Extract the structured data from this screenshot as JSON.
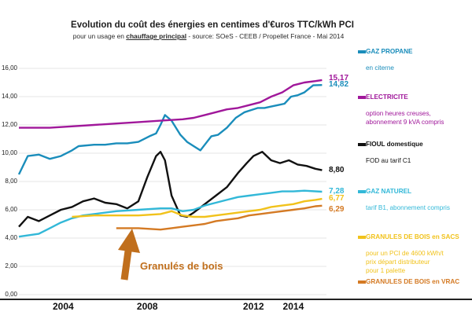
{
  "chart_data": {
    "type": "line",
    "title": "Evolution du coût des énergies en centimes d'€uros TTC/kWh PCI",
    "subtitle_prefix": "pour un usage en ",
    "subtitle_emphasis": "chauffage principal",
    "subtitle_suffix": " - source: SOeS - CEEB / Propellet France - Mai 2014",
    "ylim": [
      0,
      16
    ],
    "y_ticks": [
      "0,00",
      "2,00",
      "4,00",
      "6,00",
      "8,00",
      "10,00",
      "12,00",
      "14,00",
      "16,00"
    ],
    "x_labels": [
      "2004",
      "2008",
      "2012",
      "2014"
    ],
    "xlim": [
      2001.6,
      2015.5
    ],
    "grid": true,
    "annotation": "Granulés de bois",
    "series": [
      {
        "name": "GAZ PROPANE",
        "detail": [
          "en citerne"
        ],
        "color": "#1a8dbb",
        "end_value": "14,82",
        "x": [
          2001.6,
          2002.0,
          2002.5,
          2003.0,
          2003.5,
          2004.0,
          2004.3,
          2005.0,
          2005.5,
          2006.0,
          2006.5,
          2007.0,
          2007.5,
          2007.8,
          2008.0,
          2008.2,
          2008.5,
          2008.9,
          2009.2,
          2009.5,
          2009.8,
          2010.0,
          2010.3,
          2010.6,
          2011.0,
          2011.4,
          2011.8,
          2012.0,
          2012.4,
          2012.7,
          2013.0,
          2013.3,
          2013.6,
          2013.9,
          2014.2,
          2014.5,
          2014.9,
          2015.3
        ],
        "values": [
          8.5,
          9.8,
          9.9,
          9.6,
          9.8,
          10.2,
          10.5,
          10.6,
          10.6,
          10.7,
          10.7,
          10.8,
          11.2,
          11.4,
          12.0,
          12.7,
          12.3,
          11.3,
          10.8,
          10.5,
          10.2,
          10.6,
          11.2,
          11.3,
          11.8,
          12.5,
          12.9,
          13.0,
          13.2,
          13.2,
          13.3,
          13.4,
          13.5,
          14.0,
          14.1,
          14.3,
          14.8,
          14.82
        ]
      },
      {
        "name": "ELECTRICITE",
        "detail": [
          "option heures creuses,",
          "abonnement 9 kVA compris"
        ],
        "color": "#a0179a",
        "end_value": "15,17",
        "x": [
          2001.6,
          2003.0,
          2004.0,
          2005.0,
          2006.0,
          2007.0,
          2008.0,
          2009.0,
          2009.5,
          2010.0,
          2010.5,
          2011.0,
          2011.5,
          2012.0,
          2012.5,
          2013.0,
          2013.5,
          2014.0,
          2014.5,
          2015.0,
          2015.3
        ],
        "values": [
          11.8,
          11.8,
          11.9,
          12.0,
          12.1,
          12.2,
          12.3,
          12.4,
          12.5,
          12.7,
          12.9,
          13.1,
          13.2,
          13.4,
          13.6,
          14.0,
          14.3,
          14.8,
          15.0,
          15.1,
          15.17
        ]
      },
      {
        "name": "FIOUL domestique",
        "detail": [
          "FOD au tarif C1"
        ],
        "color": "#111111",
        "end_value": "8,80",
        "x": [
          2001.6,
          2002.0,
          2002.5,
          2003.0,
          2003.5,
          2004.0,
          2004.5,
          2005.0,
          2005.5,
          2006.0,
          2006.5,
          2007.0,
          2007.4,
          2007.8,
          2008.0,
          2008.2,
          2008.5,
          2008.9,
          2009.2,
          2009.5,
          2010.0,
          2010.5,
          2011.0,
          2011.5,
          2011.9,
          2012.2,
          2012.6,
          2013.0,
          2013.4,
          2013.8,
          2014.2,
          2014.6,
          2015.0,
          2015.3
        ],
        "values": [
          4.8,
          5.5,
          5.2,
          5.6,
          6.0,
          6.2,
          6.6,
          6.8,
          6.5,
          6.4,
          6.1,
          6.6,
          8.3,
          9.8,
          10.1,
          9.5,
          7.0,
          5.6,
          5.5,
          5.8,
          6.4,
          7.0,
          7.6,
          8.6,
          9.3,
          9.8,
          10.1,
          9.5,
          9.3,
          9.5,
          9.2,
          9.1,
          8.9,
          8.8
        ]
      },
      {
        "name": "GAZ NATUREL",
        "detail": [
          "tarif B1, abonnement compris"
        ],
        "color": "#32b8d8",
        "end_value": "7,28",
        "x": [
          2001.6,
          2002.5,
          2003.0,
          2003.5,
          2004.0,
          2004.5,
          2005.0,
          2006.0,
          2007.0,
          2008.0,
          2008.5,
          2009.0,
          2009.5,
          2010.0,
          2010.5,
          2011.0,
          2011.5,
          2012.0,
          2012.5,
          2013.0,
          2013.5,
          2014.0,
          2014.5,
          2015.3
        ],
        "values": [
          4.1,
          4.3,
          4.7,
          5.1,
          5.4,
          5.6,
          5.7,
          5.9,
          6.0,
          6.1,
          6.1,
          5.9,
          6.0,
          6.3,
          6.5,
          6.7,
          6.9,
          7.0,
          7.1,
          7.2,
          7.3,
          7.3,
          7.35,
          7.28
        ]
      },
      {
        "name": "GRANULES DE BOIS en SACS",
        "detail": [
          "pour un PCI de 4600 kWh/t",
          "prix départ distributeur",
          "pour 1 palette"
        ],
        "color": "#f1c21b",
        "end_value": "6,77",
        "x": [
          2004.0,
          2005.0,
          2006.0,
          2007.0,
          2008.0,
          2008.5,
          2009.0,
          2009.5,
          2010.0,
          2010.5,
          2011.0,
          2011.5,
          2012.0,
          2012.5,
          2013.0,
          2013.5,
          2014.0,
          2014.5,
          2015.0,
          2015.3
        ],
        "values": [
          5.5,
          5.6,
          5.6,
          5.6,
          5.7,
          5.9,
          5.6,
          5.5,
          5.5,
          5.6,
          5.7,
          5.8,
          5.9,
          6.0,
          6.2,
          6.3,
          6.4,
          6.6,
          6.7,
          6.77
        ]
      },
      {
        "name": "GRANULES DE BOIS en VRAC",
        "detail": [],
        "color": "#d47a24",
        "end_value": "6,29",
        "x": [
          2006.0,
          2007.0,
          2008.0,
          2008.5,
          2009.0,
          2009.5,
          2010.0,
          2010.5,
          2011.0,
          2011.5,
          2012.0,
          2012.5,
          2013.0,
          2013.5,
          2014.0,
          2014.5,
          2015.0,
          2015.3
        ],
        "values": [
          4.7,
          4.7,
          4.6,
          4.7,
          4.8,
          4.9,
          5.0,
          5.2,
          5.3,
          5.4,
          5.6,
          5.7,
          5.8,
          5.9,
          6.0,
          6.1,
          6.25,
          6.29
        ]
      }
    ]
  }
}
